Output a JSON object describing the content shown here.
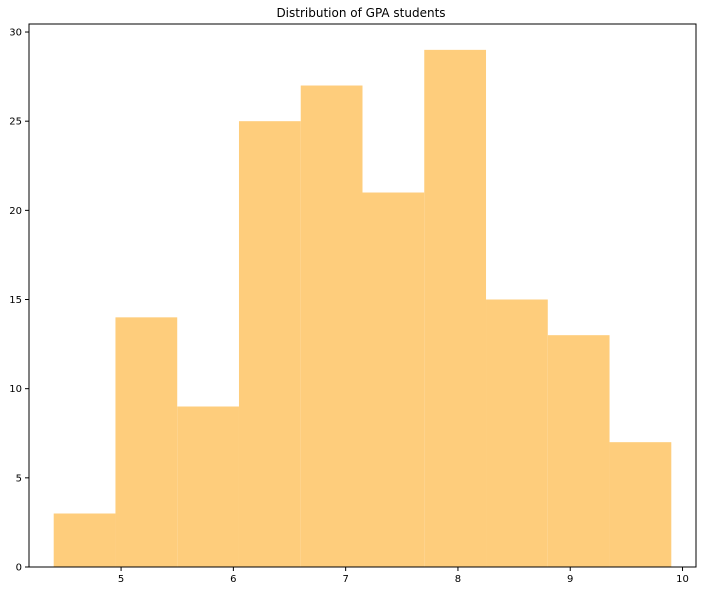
{
  "chart_data": {
    "type": "histogram",
    "title": "Distribution of GPA students",
    "xlabel": "",
    "ylabel": "",
    "bar_color": "#fecd7c",
    "bin_edges": [
      4.4,
      4.95,
      5.5,
      6.05,
      6.6,
      7.15,
      7.7,
      8.25,
      8.8,
      9.35,
      9.9
    ],
    "values": [
      3,
      14,
      9,
      25,
      27,
      21,
      29,
      15,
      13,
      7
    ],
    "xlim": [
      4.18,
      10.12
    ],
    "ylim": [
      0,
      30.45
    ],
    "x_ticks": [
      5,
      6,
      7,
      8,
      9,
      10
    ],
    "y_ticks": [
      0,
      5,
      10,
      15,
      20,
      25,
      30
    ],
    "grid": false,
    "legend": null
  }
}
